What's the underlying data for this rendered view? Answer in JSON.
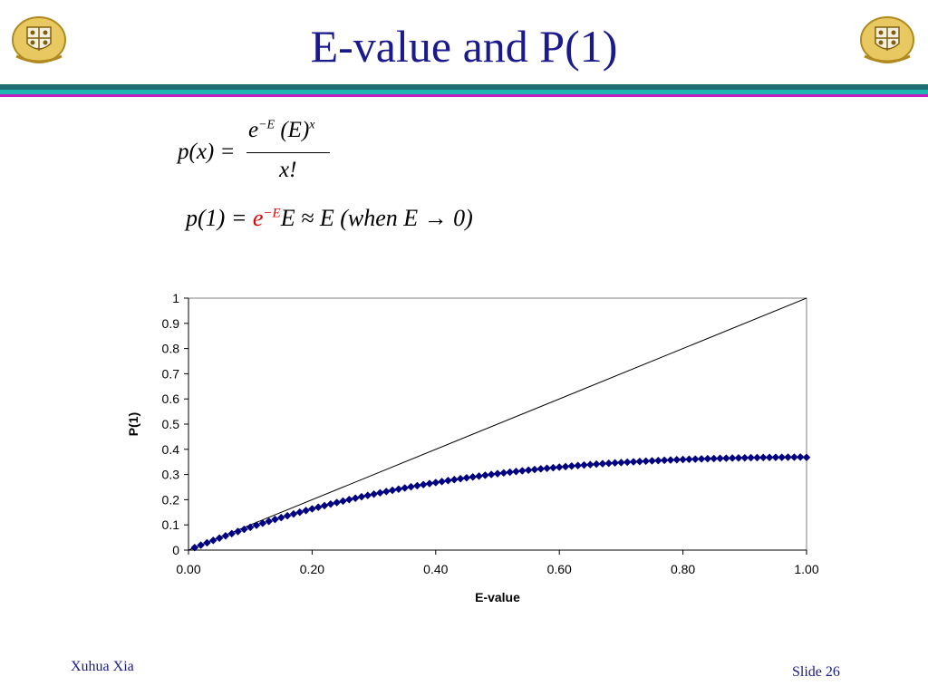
{
  "slide": {
    "title": "E-value and P(1)",
    "author": "Xuhua Xia",
    "slide_label": "Slide",
    "slide_number": "26"
  },
  "formula1": {
    "lhs": "p(x) =",
    "numerator_base": "e",
    "numerator_exp": "−E",
    "numerator_mid": " (E)",
    "numerator_exp2": "x",
    "denominator": "x!"
  },
  "formula2": {
    "lhs": "p(1) = ",
    "red_base": "e",
    "red_exp": "−E",
    "rest": "E ≈ E (when E → 0)"
  },
  "colors": {
    "title": "#1a1a8c",
    "series": "#000080",
    "reference_line": "#000000",
    "highlight": "#e00000"
  },
  "chart_data": {
    "type": "scatter",
    "xlabel": "E-value",
    "ylabel": "P(1)",
    "xlim": [
      0,
      1
    ],
    "ylim": [
      0,
      1
    ],
    "x_ticks": [
      "0.00",
      "0.20",
      "0.40",
      "0.60",
      "0.80",
      "1.00"
    ],
    "y_ticks": [
      "0",
      "0.1",
      "0.2",
      "0.3",
      "0.4",
      "0.5",
      "0.6",
      "0.7",
      "0.8",
      "0.9",
      "1"
    ],
    "grid": false,
    "legend": "none",
    "reference_line": {
      "x": [
        0,
        1
      ],
      "y": [
        0,
        1
      ]
    },
    "series": [
      {
        "x": [
          0.01,
          0.02,
          0.03,
          0.04,
          0.05,
          0.06,
          0.07,
          0.08,
          0.09,
          0.1,
          0.11,
          0.12,
          0.13,
          0.14,
          0.15,
          0.16,
          0.17,
          0.18,
          0.19,
          0.2,
          0.21,
          0.22,
          0.23,
          0.24,
          0.25,
          0.26,
          0.27,
          0.28,
          0.29,
          0.3,
          0.31,
          0.32,
          0.33,
          0.34,
          0.35,
          0.36,
          0.37,
          0.38,
          0.39,
          0.4,
          0.41,
          0.42,
          0.43,
          0.44,
          0.45,
          0.46,
          0.47,
          0.48,
          0.49,
          0.5,
          0.51,
          0.52,
          0.53,
          0.54,
          0.55,
          0.56,
          0.57,
          0.58,
          0.59,
          0.6,
          0.61,
          0.62,
          0.63,
          0.64,
          0.65,
          0.66,
          0.67,
          0.68,
          0.69,
          0.7,
          0.71,
          0.72,
          0.73,
          0.74,
          0.75,
          0.76,
          0.77,
          0.78,
          0.79,
          0.8,
          0.81,
          0.82,
          0.83,
          0.84,
          0.85,
          0.86,
          0.87,
          0.88,
          0.89,
          0.9,
          0.91,
          0.92,
          0.93,
          0.94,
          0.95,
          0.96,
          0.97,
          0.98,
          0.99,
          1.0
        ],
        "y": [
          0.0099,
          0.0196,
          0.0291,
          0.0384,
          0.0476,
          0.0565,
          0.0653,
          0.0739,
          0.0823,
          0.0905,
          0.0985,
          0.1064,
          0.1142,
          0.1217,
          0.1291,
          0.1363,
          0.1434,
          0.1504,
          0.1571,
          0.1637,
          0.1702,
          0.1765,
          0.1827,
          0.1888,
          0.1947,
          0.2005,
          0.2061,
          0.2116,
          0.217,
          0.2222,
          0.2274,
          0.2324,
          0.2372,
          0.242,
          0.2466,
          0.2512,
          0.2556,
          0.2599,
          0.2641,
          0.2681,
          0.2721,
          0.276,
          0.2797,
          0.2834,
          0.2869,
          0.2904,
          0.2938,
          0.297,
          0.3002,
          0.3033,
          0.3063,
          0.3092,
          0.312,
          0.3147,
          0.3173,
          0.3199,
          0.3224,
          0.3248,
          0.3271,
          0.3293,
          0.3315,
          0.3336,
          0.3356,
          0.3375,
          0.3394,
          0.3412,
          0.343,
          0.3446,
          0.3462,
          0.3476,
          0.3491,
          0.3504,
          0.3517,
          0.353,
          0.3543,
          0.3554,
          0.3566,
          0.3576,
          0.3586,
          0.3595,
          0.3604,
          0.3612,
          0.362,
          0.3627,
          0.3634,
          0.3641,
          0.3647,
          0.3653,
          0.3658,
          0.3663,
          0.3667,
          0.3671,
          0.3675,
          0.3678,
          0.3681,
          0.3684,
          0.3686,
          0.3688,
          0.369,
          0.3679
        ]
      }
    ]
  }
}
